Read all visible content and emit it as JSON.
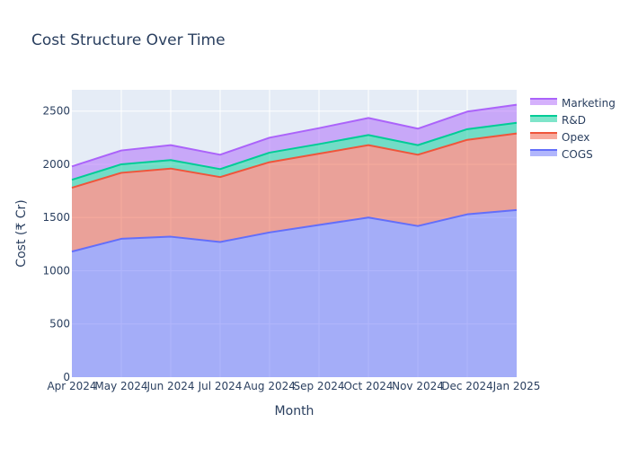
{
  "chart_data": {
    "type": "area",
    "stacked": true,
    "title": "Cost Structure Over Time",
    "xlabel": "Month",
    "ylabel": "Cost (₹ Cr)",
    "categories": [
      "Apr 2024",
      "May 2024",
      "Jun 2024",
      "Jul 2024",
      "Aug 2024",
      "Sep 2024",
      "Oct 2024",
      "Nov 2024",
      "Dec 2024",
      "Jan 2025"
    ],
    "ylim": [
      0,
      2700
    ],
    "yticks": [
      0,
      500,
      1000,
      1500,
      2000,
      2500
    ],
    "grid": true,
    "legend_position": "top-right",
    "series": [
      {
        "name": "COGS",
        "color": "#636efa",
        "values": [
          1180,
          1300,
          1320,
          1270,
          1360,
          1430,
          1500,
          1420,
          1530,
          1570
        ]
      },
      {
        "name": "Opex",
        "color": "#ef553b",
        "values": [
          600,
          620,
          640,
          610,
          660,
          670,
          680,
          670,
          700,
          720
        ]
      },
      {
        "name": "R&D",
        "color": "#00cc96",
        "values": [
          75,
          80,
          80,
          75,
          90,
          90,
          95,
          90,
          100,
          100
        ]
      },
      {
        "name": "Marketing",
        "color": "#ab63fa",
        "values": [
          125,
          130,
          140,
          135,
          140,
          150,
          160,
          155,
          165,
          170
        ]
      }
    ]
  }
}
